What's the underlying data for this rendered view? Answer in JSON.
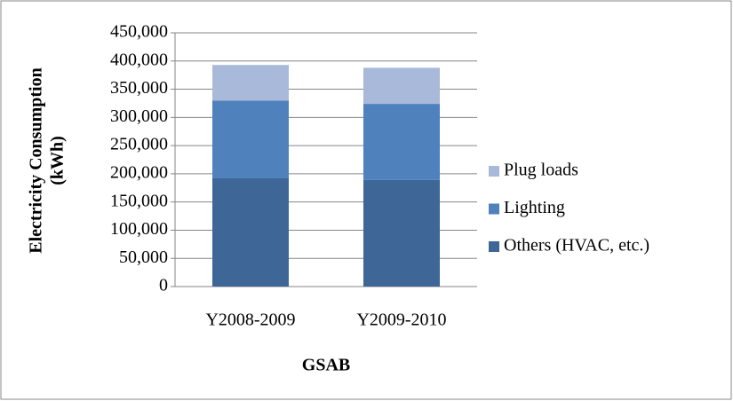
{
  "chart_data": {
    "type": "stacked-bar",
    "x_label": "GSAB",
    "y_label": [
      "Electricity Consumption",
      "(kWh)"
    ],
    "categories": [
      "Y2008-2009",
      "Y2009-2010"
    ],
    "series": [
      {
        "name": "Others (HVAC, etc.)",
        "color": "#3e6797",
        "values": [
          192000,
          189000
        ]
      },
      {
        "name": "Lighting",
        "color": "#4f81bd",
        "values": [
          138000,
          135000
        ]
      },
      {
        "name": "Plug loads",
        "color": "#a8b9d9",
        "values": [
          63000,
          64000
        ]
      }
    ],
    "ylim": [
      0,
      450000
    ],
    "yticks": [
      0,
      {
        "value": 50000,
        "label": "50,000"
      },
      {
        "value": 100000,
        "label": "100,000"
      },
      {
        "value": 150000,
        "label": "150,000"
      },
      {
        "value": 200000,
        "label": "200,000"
      },
      {
        "value": 250000,
        "label": "250,000"
      },
      {
        "value": 300000,
        "label": "300,000"
      },
      {
        "value": 350000,
        "label": "350,000"
      },
      {
        "value": 400000,
        "label": "400,000"
      },
      {
        "value": 450000,
        "label": "450,000"
      }
    ],
    "grid": true,
    "legend": "right"
  }
}
